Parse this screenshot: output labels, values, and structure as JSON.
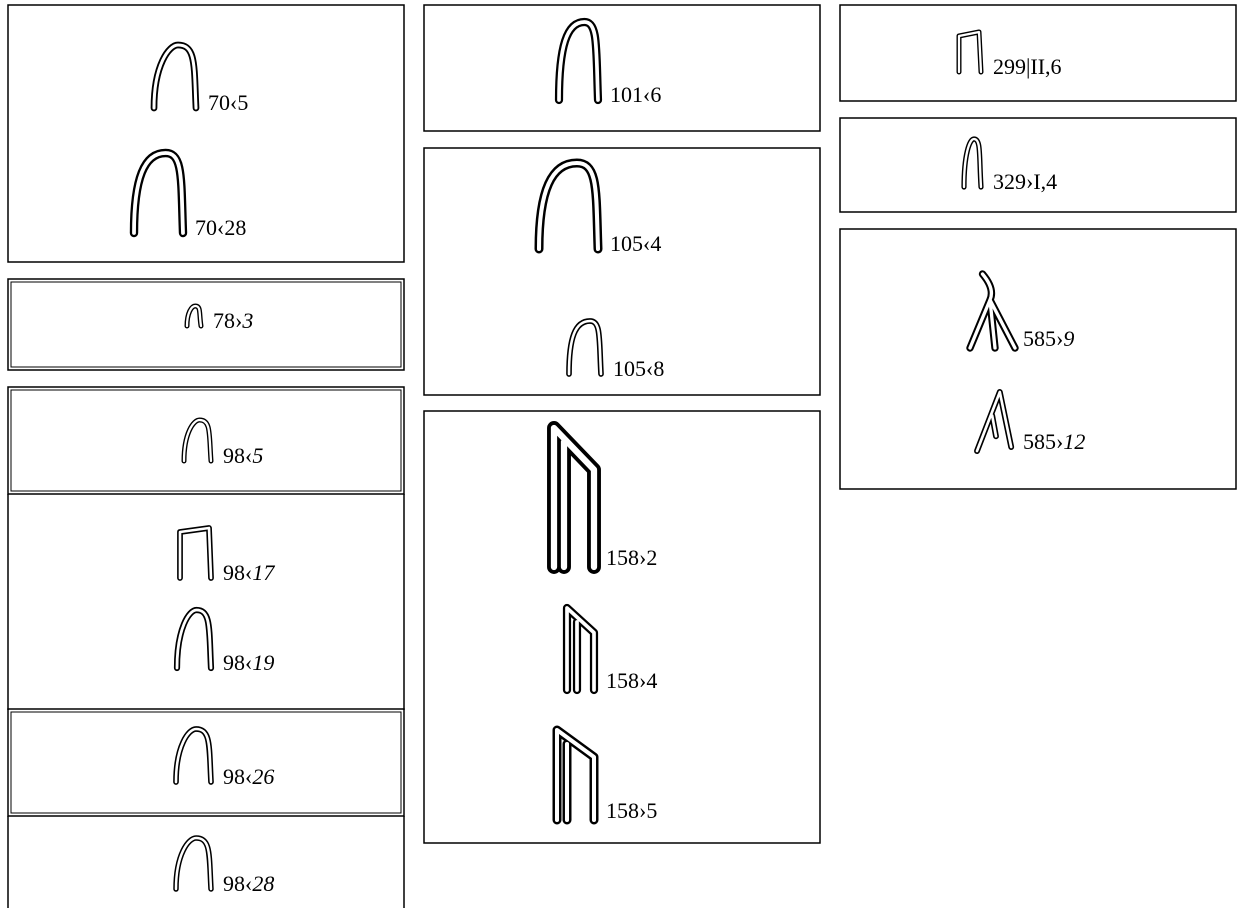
{
  "panels": [
    {
      "entries": [
        {
          "label": "70‹5"
        },
        {
          "label": "70‹28"
        }
      ]
    },
    {
      "entries": [
        {
          "label": "78›",
          "italic": "3"
        }
      ]
    },
    {
      "entries": [
        {
          "label": "98‹",
          "italic": "5"
        }
      ]
    },
    {
      "entries": [
        {
          "label": "98‹",
          "italic": "17"
        },
        {
          "label": "98‹",
          "italic": "19"
        }
      ]
    },
    {
      "entries": [
        {
          "label": "98‹",
          "italic": "26"
        }
      ]
    },
    {
      "entries": [
        {
          "label": "98‹",
          "italic": "28"
        }
      ]
    },
    {
      "entries": [
        {
          "label": "101‹6"
        }
      ]
    },
    {
      "entries": [
        {
          "label": "105‹4"
        },
        {
          "label": "105‹8"
        }
      ]
    },
    {
      "entries": [
        {
          "label": "158›2"
        },
        {
          "label": "158›4"
        },
        {
          "label": "158›5"
        }
      ]
    },
    {
      "entries": [
        {
          "label": "299|II,6"
        }
      ]
    },
    {
      "entries": [
        {
          "label": "329›I,4"
        }
      ]
    },
    {
      "entries": [
        {
          "label": "585›",
          "italic": "9"
        },
        {
          "label": "585›",
          "italic": "12"
        }
      ]
    }
  ]
}
